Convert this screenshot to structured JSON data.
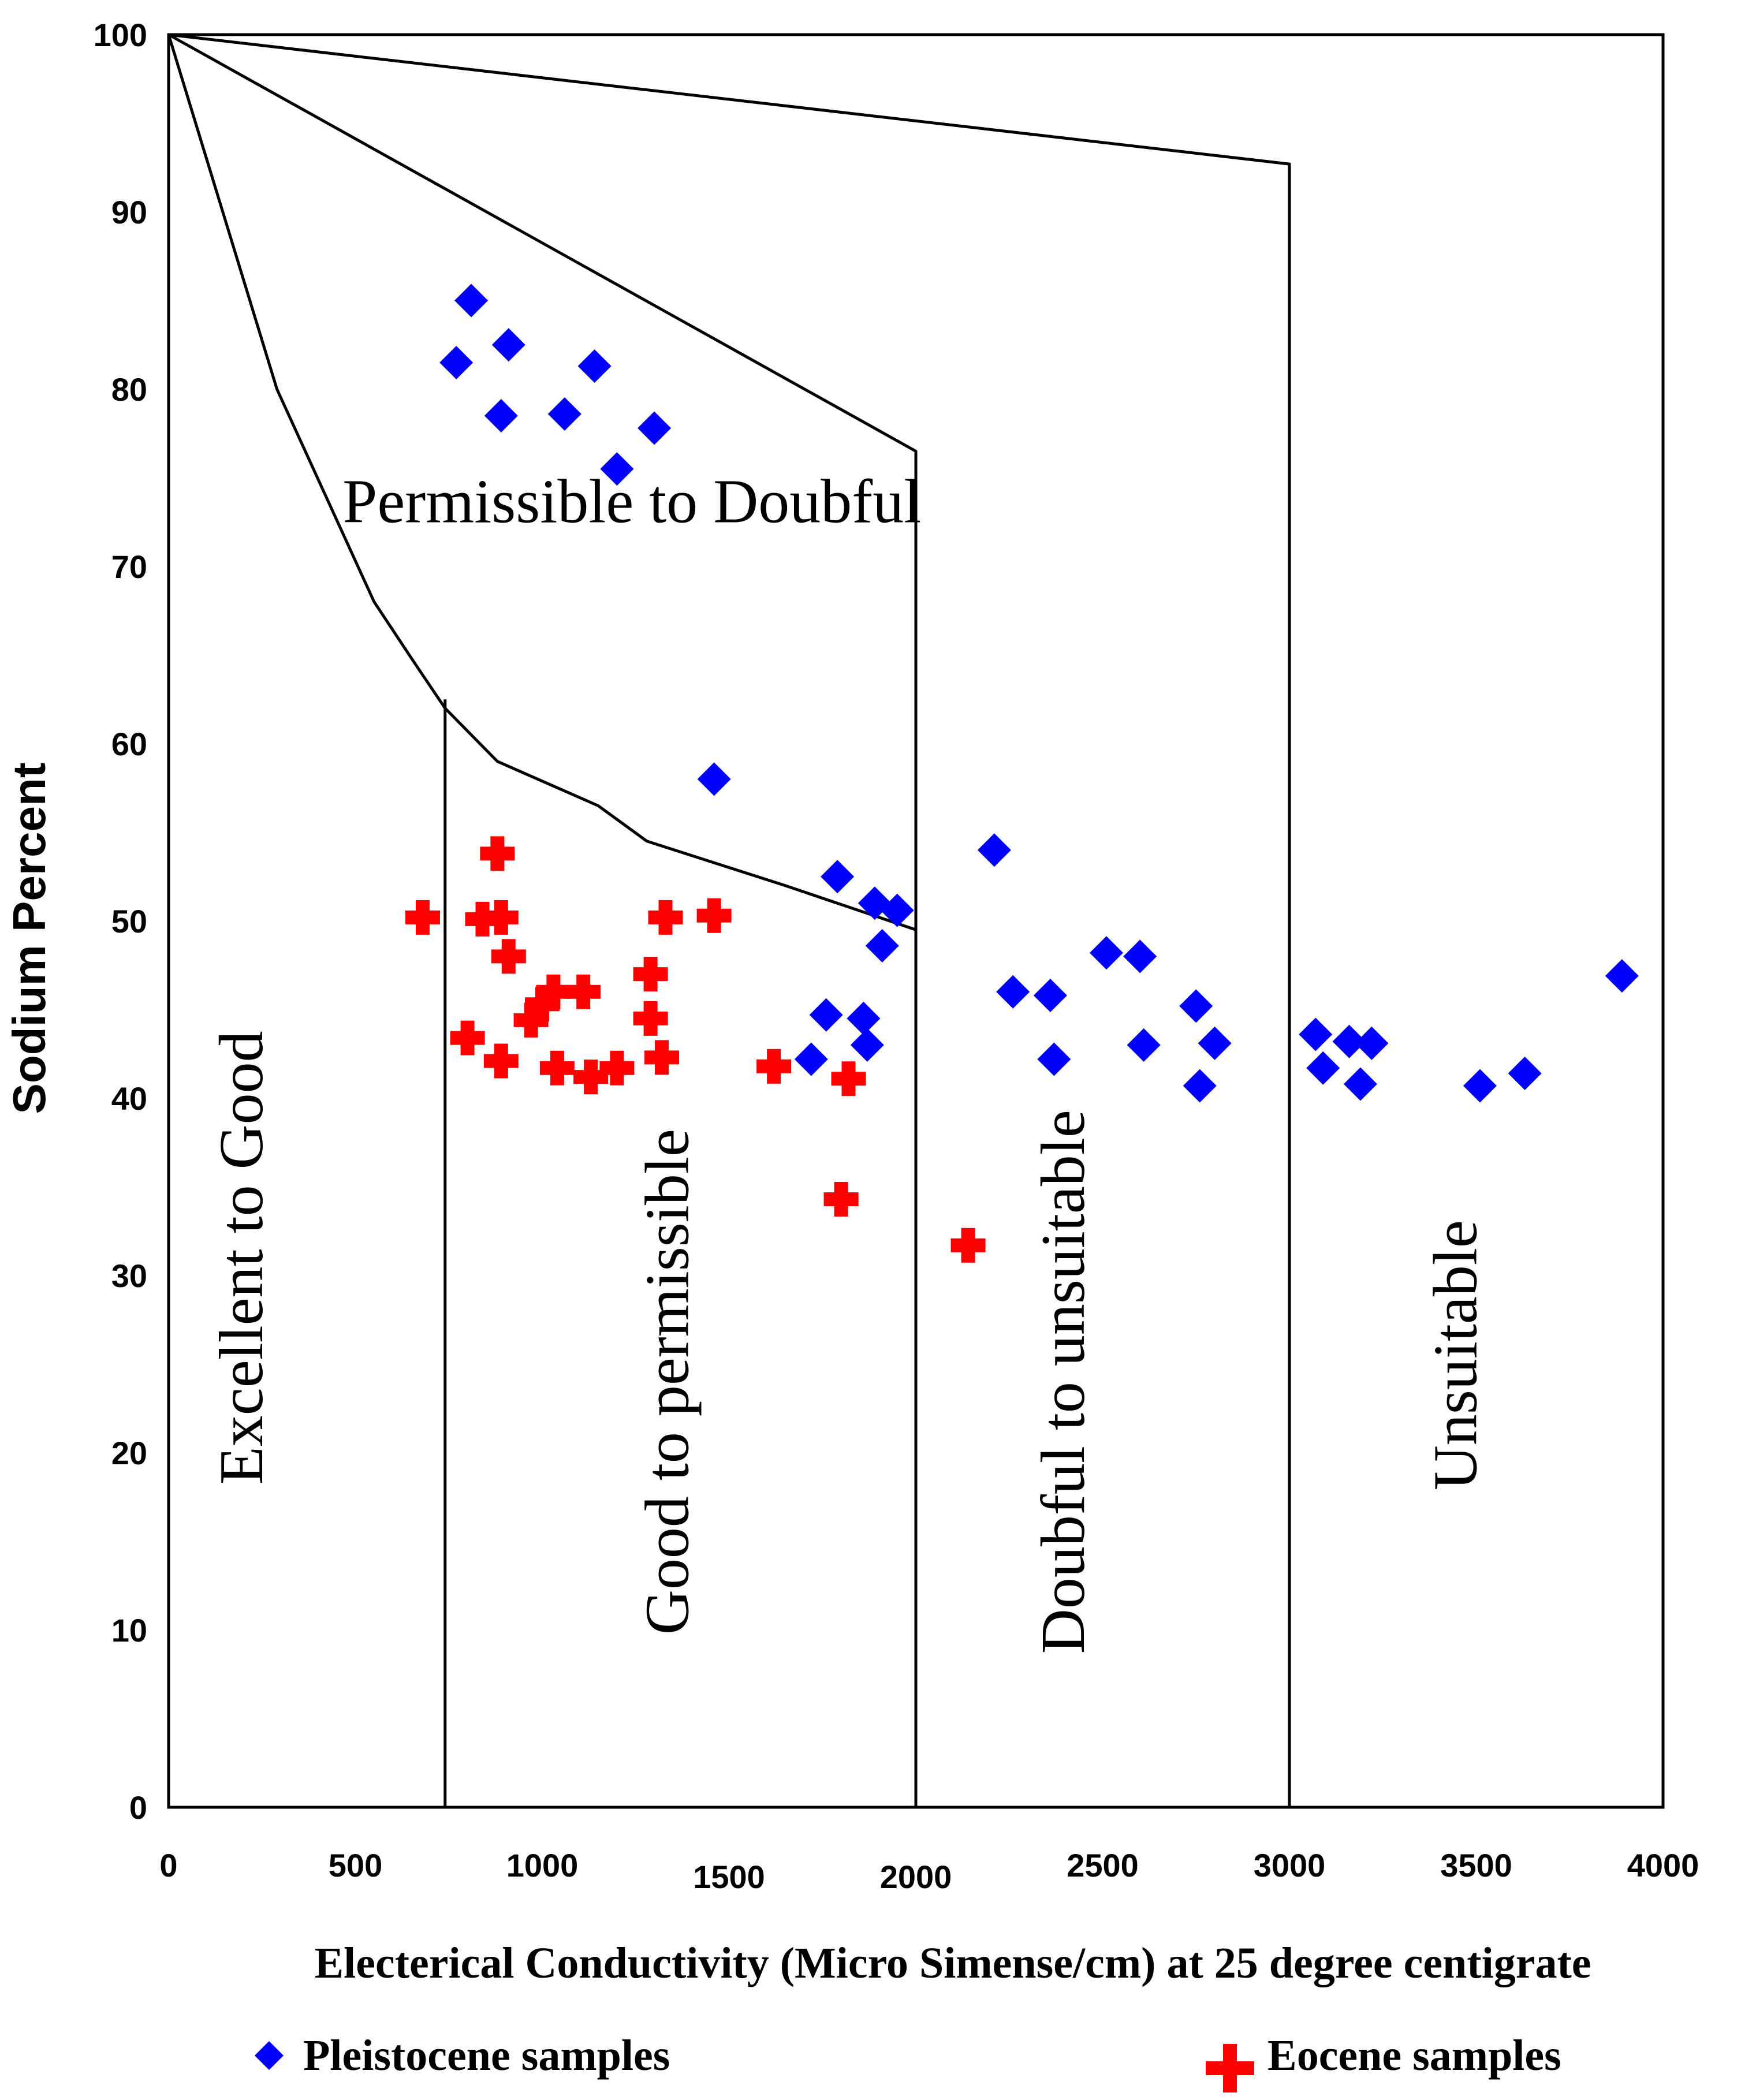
{
  "chart_data": {
    "type": "scatter",
    "title": "",
    "xlabel": "Electerical Conductivity (Micro Simense/cm) at 25 degree centigrate",
    "ylabel": "Sodium Percent",
    "xlim": [
      0,
      4000
    ],
    "ylim": [
      0,
      100
    ],
    "xticks": [
      "0",
      "500",
      "1000",
      "1500",
      "2000",
      "2500",
      "3000",
      "3500",
      "4000"
    ],
    "yticks": [
      "0",
      "10",
      "20",
      "30",
      "40",
      "50",
      "60",
      "70",
      "80",
      "90",
      "100"
    ],
    "zones": [
      {
        "label": "Permissible to Doubful",
        "x": 1240,
        "y": 72.5,
        "rotate": false
      },
      {
        "label": "Excellent to Good",
        "x": 250,
        "y": 31,
        "rotate": true
      },
      {
        "label": "Good to permissible",
        "x": 1390,
        "y": 24,
        "rotate": true
      },
      {
        "label": "Doubful to unsuitable",
        "x": 2450,
        "y": 24,
        "rotate": true
      },
      {
        "label": "Unsuitable",
        "x": 3500,
        "y": 25.5,
        "rotate": true
      }
    ],
    "boundaries": [
      {
        "name": "outer-envelope",
        "points": [
          [
            0,
            100
          ],
          [
            3000,
            92.7
          ],
          [
            3000,
            0
          ]
        ]
      },
      {
        "name": "doubtful-boundary",
        "points": [
          [
            0,
            100
          ],
          [
            2000,
            76.5
          ],
          [
            2000,
            0
          ]
        ]
      },
      {
        "name": "excellent-curve",
        "points": [
          [
            0,
            100
          ],
          [
            290,
            80
          ],
          [
            550,
            68
          ],
          [
            660,
            64.5
          ],
          [
            740,
            62
          ],
          [
            880,
            59
          ],
          [
            1150,
            56.5
          ],
          [
            1280,
            54.5
          ],
          [
            1650,
            52
          ],
          [
            2000,
            49.5
          ]
        ]
      },
      {
        "name": "excellent-boundary",
        "points": [
          [
            740,
            62.5
          ],
          [
            740,
            0
          ]
        ]
      }
    ],
    "series": [
      {
        "name": "Pleistocene samples",
        "marker": "diamond",
        "color": "#0000FF",
        "points": [
          [
            810,
            85
          ],
          [
            770,
            81.5
          ],
          [
            910,
            82.5
          ],
          [
            890,
            78.5
          ],
          [
            1140,
            81.3
          ],
          [
            1060,
            78.6
          ],
          [
            1300,
            77.8
          ],
          [
            1200,
            75.5
          ],
          [
            1460,
            58
          ],
          [
            1790,
            52.5
          ],
          [
            1890,
            51
          ],
          [
            1950,
            50.6
          ],
          [
            1910,
            48.6
          ],
          [
            1760,
            44.7
          ],
          [
            1860,
            44.5
          ],
          [
            1870,
            43
          ],
          [
            1720,
            42.2
          ],
          [
            2210,
            54
          ],
          [
            2260,
            46
          ],
          [
            2360,
            45.8
          ],
          [
            2370,
            42.2
          ],
          [
            2510,
            48.2
          ],
          [
            2600,
            48
          ],
          [
            2610,
            43
          ],
          [
            2750,
            45.2
          ],
          [
            2800,
            43.1
          ],
          [
            2760,
            40.7
          ],
          [
            3070,
            43.6
          ],
          [
            3090,
            41.7
          ],
          [
            3160,
            43.2
          ],
          [
            3220,
            43.1
          ],
          [
            3190,
            40.8
          ],
          [
            3510,
            40.7
          ],
          [
            3630,
            41.4
          ],
          [
            3890,
            46.9
          ]
        ]
      },
      {
        "name": "Eocene samples",
        "marker": "cross",
        "color": "#FF0000",
        "points": [
          [
            680,
            50.2
          ],
          [
            800,
            43.4
          ],
          [
            840,
            50.1
          ],
          [
            880,
            53.8
          ],
          [
            890,
            50.2
          ],
          [
            910,
            48
          ],
          [
            890,
            42.1
          ],
          [
            970,
            44.4
          ],
          [
            1000,
            45.3
          ],
          [
            1030,
            46
          ],
          [
            1110,
            46
          ],
          [
            1040,
            41.7
          ],
          [
            1130,
            41.2
          ],
          [
            1200,
            41.7
          ],
          [
            1290,
            47
          ],
          [
            1290,
            44.5
          ],
          [
            1320,
            42.3
          ],
          [
            1330,
            50.2
          ],
          [
            1460,
            50.3
          ],
          [
            1620,
            41.8
          ],
          [
            1820,
            41.1
          ],
          [
            1800,
            34.3
          ],
          [
            2140,
            31.7
          ]
        ]
      }
    ],
    "legend": {
      "placement": "bottom",
      "items": [
        "Pleistocene samples",
        "Eocene samples"
      ]
    }
  }
}
